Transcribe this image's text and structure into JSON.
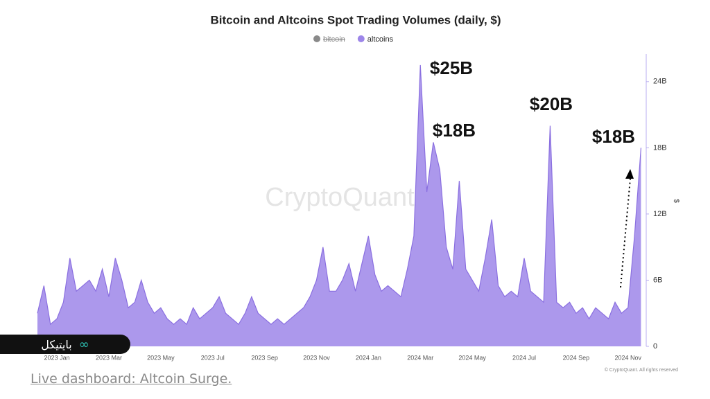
{
  "chart_data": {
    "type": "area",
    "title": "Bitcoin and Altcoins Spot Trading Volumes (daily, $)",
    "y_label": "$",
    "watermark": "CryptoQuant",
    "copyright": "© CryptoQuant. All rights reserved",
    "annotations": [
      "$25B",
      "$18B",
      "$20B",
      "$18B"
    ],
    "categories": [
      null,
      null,
      null,
      "2023 Jan",
      null,
      null,
      null,
      null,
      null,
      null,
      null,
      "2023 Mar",
      null,
      null,
      null,
      null,
      null,
      null,
      null,
      "2023 May",
      null,
      null,
      null,
      null,
      null,
      null,
      null,
      "2023 Jul",
      null,
      null,
      null,
      null,
      null,
      null,
      null,
      "2023 Sep",
      null,
      null,
      null,
      null,
      null,
      null,
      null,
      "2023 Nov",
      null,
      null,
      null,
      null,
      null,
      null,
      null,
      "2024 Jan",
      null,
      null,
      null,
      null,
      null,
      null,
      null,
      "2024 Mar",
      null,
      null,
      null,
      null,
      null,
      null,
      null,
      "2024 May",
      null,
      null,
      null,
      null,
      null,
      null,
      null,
      "2024 Jul",
      null,
      null,
      null,
      null,
      null,
      null,
      null,
      "2024 Sep",
      null,
      null,
      null,
      null,
      null,
      null,
      null,
      "2024 Nov",
      null,
      null
    ],
    "series": [
      {
        "name": "bitcoin",
        "color": "#8a8a8a",
        "visible": false
      },
      {
        "name": "altcoins",
        "color": "#9d86e9",
        "visible": true,
        "values": [
          3,
          5.5,
          2,
          2.5,
          4,
          8,
          5,
          5.5,
          6,
          5,
          7,
          4.5,
          8,
          6,
          3.5,
          4,
          6,
          4,
          3,
          3.5,
          2.5,
          2,
          2.5,
          2,
          3.5,
          2.5,
          3,
          3.5,
          4.5,
          3,
          2.5,
          2,
          3,
          4.5,
          3,
          2.5,
          2,
          2.5,
          2,
          2.5,
          3,
          3.5,
          4.5,
          6,
          9,
          5,
          5,
          6,
          7.5,
          5,
          7.5,
          10,
          6.5,
          5,
          5.5,
          5,
          4.5,
          7,
          10,
          25.5,
          14,
          18.5,
          16,
          9,
          7,
          15,
          7,
          6,
          5,
          8,
          11.5,
          5.5,
          4.5,
          5,
          4.5,
          8,
          5,
          4.5,
          4,
          20,
          4,
          3.5,
          4,
          3,
          3.5,
          2.5,
          3.5,
          3,
          2.5,
          4,
          3,
          3.5,
          10,
          18
        ]
      }
    ],
    "ylim": [
      0,
      26.5
    ],
    "yticks": [
      0,
      {
        "value": 6,
        "label": "6B"
      },
      {
        "value": 12,
        "label": "12B"
      },
      {
        "value": 18,
        "label": "18B"
      },
      {
        "value": 24,
        "label": "24B"
      }
    ],
    "grid": false
  },
  "caption": "Live dashboard: Altcoin Surge.",
  "logo": "بایتیکل"
}
